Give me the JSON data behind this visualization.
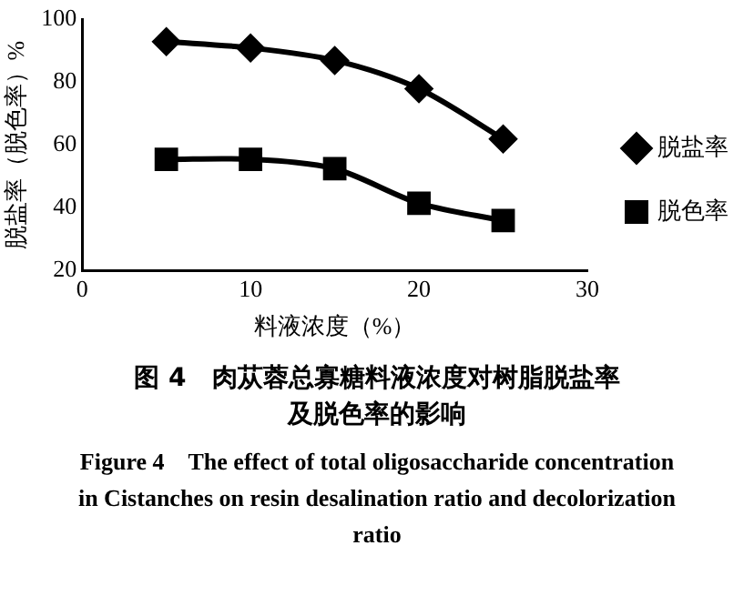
{
  "chart_data": {
    "type": "line",
    "xlabel": "料液浓度（%）",
    "ylabel": "脱盐率（脱色率）%",
    "x": [
      5,
      10,
      15,
      20,
      25
    ],
    "series": [
      {
        "name": "脱盐率",
        "color": "#000000",
        "marker": "diamond",
        "values": [
          93,
          91,
          87,
          78,
          62
        ]
      },
      {
        "name": "脱色率",
        "color": "#000000",
        "marker": "square",
        "values": [
          55.5,
          55.5,
          52.5,
          41.5,
          36
        ]
      }
    ],
    "xlim": [
      0,
      30
    ],
    "xticks": [
      0,
      10,
      20,
      30
    ],
    "ylim": [
      20,
      100
    ],
    "yticks": [
      20,
      40,
      60,
      80,
      100
    ],
    "grid": false,
    "legend": "right",
    "line_style": "solid",
    "annotations": [
      "图 4　肉苁蓉总寡糖料液浓度对树脂脱盐率及脱色率的影响",
      "Figure 4　The effect of total oligosaccharide concentration in Cistanches on resin desalination ratio and decolorization ratio"
    ]
  }
}
